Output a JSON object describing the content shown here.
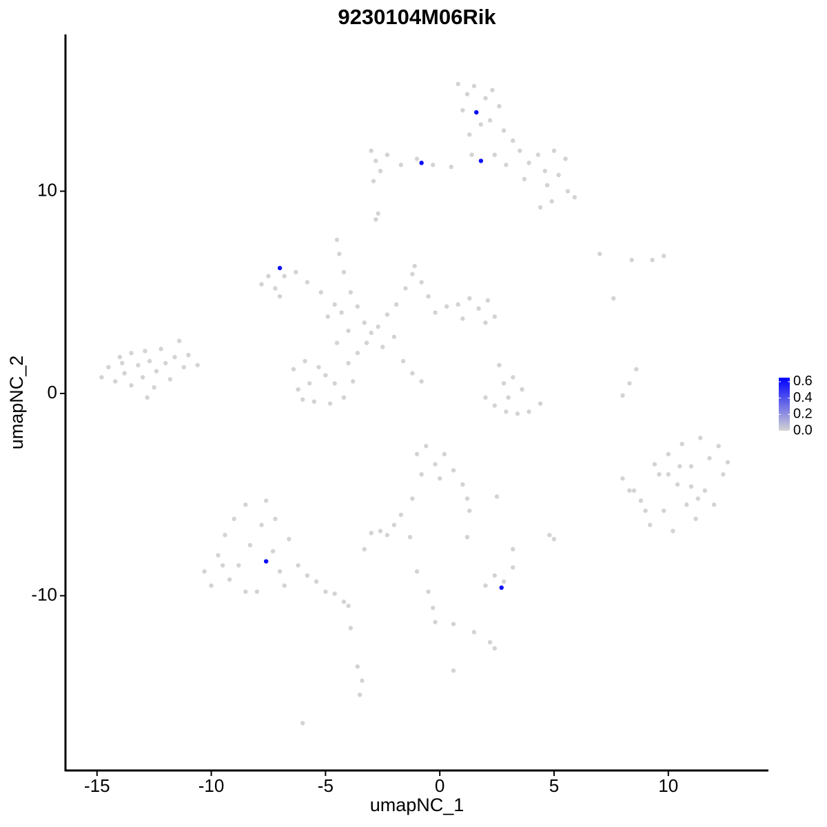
{
  "chart_data": {
    "type": "scatter",
    "title": "9230104M06Rik",
    "x_label": "umapNC_1",
    "y_label": "umapNC_2",
    "xlim": [
      -16.38,
      14.38
    ],
    "ylim": [
      -18.64,
      17.75
    ],
    "xticks": [
      -15,
      -10,
      -5,
      0,
      5,
      10
    ],
    "yticks": [
      -10,
      0,
      10
    ],
    "low_color": "#d3d3d3",
    "high_color": "#0000ff",
    "colorlim": [
      0,
      0.65
    ],
    "color_ticks": [
      {
        "value": 0,
        "label": "0.0"
      },
      0.2,
      0.4,
      0.6
    ],
    "x": [
      -14.8,
      -14.5,
      -14.2,
      -14.0,
      -13.8,
      -13.5,
      -13.5,
      -13.2,
      -13.0,
      -12.9,
      -12.7,
      -12.5,
      -12.4,
      -12.2,
      -12.0,
      -11.8,
      -11.6,
      -11.4,
      -11.2,
      -11.0,
      -10.6,
      -13.9,
      -12.8,
      0.8,
      1.2,
      1.0,
      1.5,
      2.0,
      2.3,
      2.6,
      1.8,
      1.3,
      2.2,
      2.8,
      3.2,
      3.5,
      3.9,
      4.3,
      4.6,
      5.0,
      5.5,
      5.2,
      5.6,
      5.9,
      4.9,
      4.4,
      4.7,
      3.7,
      2.9,
      2.4,
      1.4,
      0.5,
      -0.3,
      -1.0,
      -1.7,
      -2.3,
      -2.8,
      -3.0,
      -2.6,
      -2.9,
      -2.7,
      -2.8,
      -7.5,
      -7.2,
      -6.8,
      -6.3,
      -5.8,
      -5.2,
      -4.6,
      -4.9,
      -4.3,
      -4.5,
      -4.4,
      -4.2,
      -3.9,
      -3.6,
      -3.3,
      -3.0,
      -3.2,
      -2.7,
      -2.3,
      -1.9,
      -1.5,
      -1.2,
      -1.1,
      -0.8,
      -0.5,
      -0.2,
      0.3,
      0.8,
      1.3,
      1.7,
      2.1,
      2.4,
      2.0,
      1.0,
      -2.0,
      -1.6,
      -1.2,
      -0.8,
      -3.6,
      -4.0,
      -3.8,
      -4.2,
      -4.8,
      -5.5,
      -6.2,
      -6.4,
      -5.9,
      -5.3,
      -4.6,
      -5.0,
      -5.7,
      -6.0,
      -4.5,
      -4.0,
      -2.5,
      -7.8,
      -7.0,
      2.0,
      2.4,
      2.9,
      3.4,
      3.9,
      4.4,
      2.8,
      3.2,
      3.6,
      3.0,
      2.6,
      8.0,
      8.3,
      8.6,
      7.0,
      8.4,
      9.3,
      9.8,
      7.6,
      8.5,
      8.8,
      9.2,
      9.6,
      9.8,
      10.0,
      10.2,
      10.4,
      10.6,
      10.8,
      11.0,
      11.2,
      11.4,
      11.6,
      11.8,
      12.0,
      12.2,
      12.4,
      10.0,
      11.0,
      9.4,
      10.5,
      11.3,
      9.0,
      12.6,
      8.0,
      8.3,
      -10.3,
      -10.0,
      -9.7,
      -9.4,
      -9.2,
      -9.0,
      -8.8,
      -8.5,
      -8.3,
      -8.0,
      -7.8,
      -7.6,
      -7.3,
      -7.0,
      -7.2,
      -6.8,
      -6.6,
      -6.2,
      -5.8,
      -5.4,
      -5.0,
      -4.6,
      -4.2,
      -4.0,
      -8.5,
      -9.5,
      -3.9,
      -3.6,
      -3.4,
      -3.5,
      -6.0,
      -1.0,
      -0.6,
      -0.2,
      0.2,
      0.6,
      -0.8,
      0.0,
      1.0,
      1.2,
      1.3,
      -1.2,
      -1.7,
      -2.0,
      -2.6,
      -2.3,
      -3.0,
      -1.3,
      -1.0,
      -0.5,
      -0.3,
      -0.2,
      0.6,
      1.5,
      2.2,
      2.4,
      0.6,
      2.5,
      5.0,
      4.8,
      3.2,
      2.0,
      2.4,
      2.8,
      3.2,
      -3.3,
      1.2,
      1.6,
      -0.8,
      1.8,
      -7.0,
      -7.6,
      2.7
    ],
    "values": [
      0.8,
      1.3,
      0.6,
      1.8,
      1.0,
      2.0,
      0.4,
      1.4,
      0.8,
      2.1,
      1.6,
      0.3,
      1.1,
      2.2,
      1.5,
      0.7,
      1.8,
      2.6,
      1.3,
      1.9,
      1.4,
      1.5,
      -0.2,
      15.3,
      14.8,
      14.0,
      15.2,
      14.6,
      15.0,
      14.2,
      13.3,
      12.8,
      13.5,
      13.0,
      12.5,
      12.0,
      11.4,
      11.8,
      11.0,
      12.0,
      11.6,
      10.8,
      10.0,
      9.7,
      9.5,
      9.2,
      10.3,
      10.6,
      11.3,
      11.8,
      11.8,
      11.2,
      11.3,
      11.6,
      11.3,
      11.8,
      11.5,
      12.0,
      11.0,
      10.5,
      8.9,
      8.6,
      5.8,
      5.2,
      5.8,
      6.0,
      5.5,
      5.0,
      4.4,
      3.8,
      4.0,
      7.6,
      6.9,
      6.0,
      5.0,
      4.3,
      3.5,
      3.0,
      2.5,
      3.3,
      3.9,
      4.4,
      5.2,
      5.9,
      6.3,
      5.5,
      4.8,
      4.0,
      4.3,
      4.4,
      4.7,
      4.2,
      4.6,
      3.8,
      3.5,
      3.7,
      2.8,
      1.6,
      1.0,
      0.6,
      2.0,
      1.5,
      0.6,
      -0.2,
      -0.5,
      -0.4,
      0.2,
      1.2,
      1.6,
      1.3,
      0.5,
      0.9,
      0.5,
      -0.3,
      2.5,
      3.1,
      2.3,
      5.4,
      4.8,
      -0.2,
      -0.6,
      -0.9,
      -1.0,
      -0.9,
      -0.5,
      0.5,
      0.8,
      0.2,
      -0.2,
      1.4,
      -0.1,
      0.5,
      1.2,
      6.9,
      6.6,
      6.6,
      6.8,
      4.7,
      -4.8,
      -5.3,
      -6.5,
      -4.0,
      -5.8,
      -3.0,
      -6.8,
      -4.5,
      -2.5,
      -5.5,
      -3.6,
      -6.2,
      -2.2,
      -4.8,
      -3.2,
      -5.5,
      -2.6,
      -4.0,
      -4.0,
      -4.6,
      -3.5,
      -3.6,
      -5.2,
      -5.8,
      -3.4,
      -4.2,
      -4.8,
      -8.8,
      -9.5,
      -8.0,
      -7.0,
      -9.2,
      -6.2,
      -8.5,
      -5.5,
      -7.5,
      -9.8,
      -6.5,
      -5.3,
      -7.8,
      -8.8,
      -6.2,
      -9.5,
      -7.2,
      -8.5,
      -9.0,
      -9.3,
      -9.8,
      -9.9,
      -10.3,
      -10.5,
      -9.8,
      -8.5,
      -11.6,
      -13.5,
      -14.2,
      -14.9,
      -16.3,
      -3.0,
      -2.6,
      -3.5,
      -3.0,
      -3.8,
      -4.0,
      -4.2,
      -4.5,
      -5.2,
      -5.8,
      -5.2,
      -6.0,
      -6.5,
      -6.8,
      -7.0,
      -6.9,
      -7.1,
      -8.8,
      -9.8,
      -10.6,
      -11.3,
      -11.4,
      -11.8,
      -12.3,
      -12.6,
      -13.7,
      -5.1,
      -7.2,
      -7.0,
      -7.7,
      -9.5,
      -9.0,
      -9.3,
      -8.6,
      -7.7,
      -7.1,
      13.9,
      11.4,
      11.5,
      6.2,
      -8.3,
      -9.6
    ],
    "expression": [
      0,
      0,
      0,
      0,
      0,
      0,
      0,
      0,
      0,
      0,
      0,
      0,
      0,
      0,
      0,
      0,
      0,
      0,
      0,
      0,
      0,
      0,
      0,
      0,
      0,
      0,
      0,
      0,
      0,
      0,
      0,
      0,
      0,
      0,
      0,
      0,
      0,
      0,
      0,
      0,
      0,
      0,
      0,
      0,
      0,
      0,
      0,
      0,
      0,
      0,
      0,
      0,
      0,
      0,
      0,
      0,
      0,
      0,
      0,
      0,
      0,
      0,
      0,
      0,
      0,
      0,
      0,
      0,
      0,
      0,
      0,
      0,
      0,
      0,
      0,
      0,
      0,
      0,
      0,
      0,
      0,
      0,
      0,
      0,
      0,
      0,
      0,
      0,
      0,
      0,
      0,
      0,
      0,
      0,
      0,
      0,
      0,
      0,
      0,
      0,
      0,
      0,
      0,
      0,
      0,
      0,
      0,
      0,
      0,
      0,
      0,
      0,
      0,
      0,
      0,
      0,
      0,
      0,
      0,
      0,
      0,
      0,
      0,
      0,
      0,
      0,
      0,
      0,
      0,
      0,
      0,
      0,
      0,
      0,
      0,
      0,
      0,
      0,
      0,
      0,
      0,
      0,
      0,
      0,
      0,
      0,
      0,
      0,
      0,
      0,
      0,
      0,
      0,
      0,
      0,
      0,
      0,
      0,
      0,
      0,
      0,
      0,
      0,
      0,
      0,
      0,
      0,
      0,
      0,
      0,
      0,
      0,
      0,
      0,
      0,
      0,
      0,
      0,
      0,
      0,
      0,
      0,
      0,
      0,
      0,
      0,
      0,
      0,
      0,
      0,
      0,
      0,
      0,
      0,
      0,
      0,
      0,
      0,
      0,
      0,
      0,
      0,
      0,
      0,
      0,
      0,
      0,
      0,
      0,
      0,
      0,
      0,
      0,
      0,
      0,
      0,
      0,
      0,
      0,
      0,
      0,
      0,
      0,
      0,
      0,
      0,
      0,
      0,
      0,
      0,
      0,
      0,
      0.65,
      0.62,
      0.6,
      0.6,
      0.63,
      0.6
    ]
  }
}
